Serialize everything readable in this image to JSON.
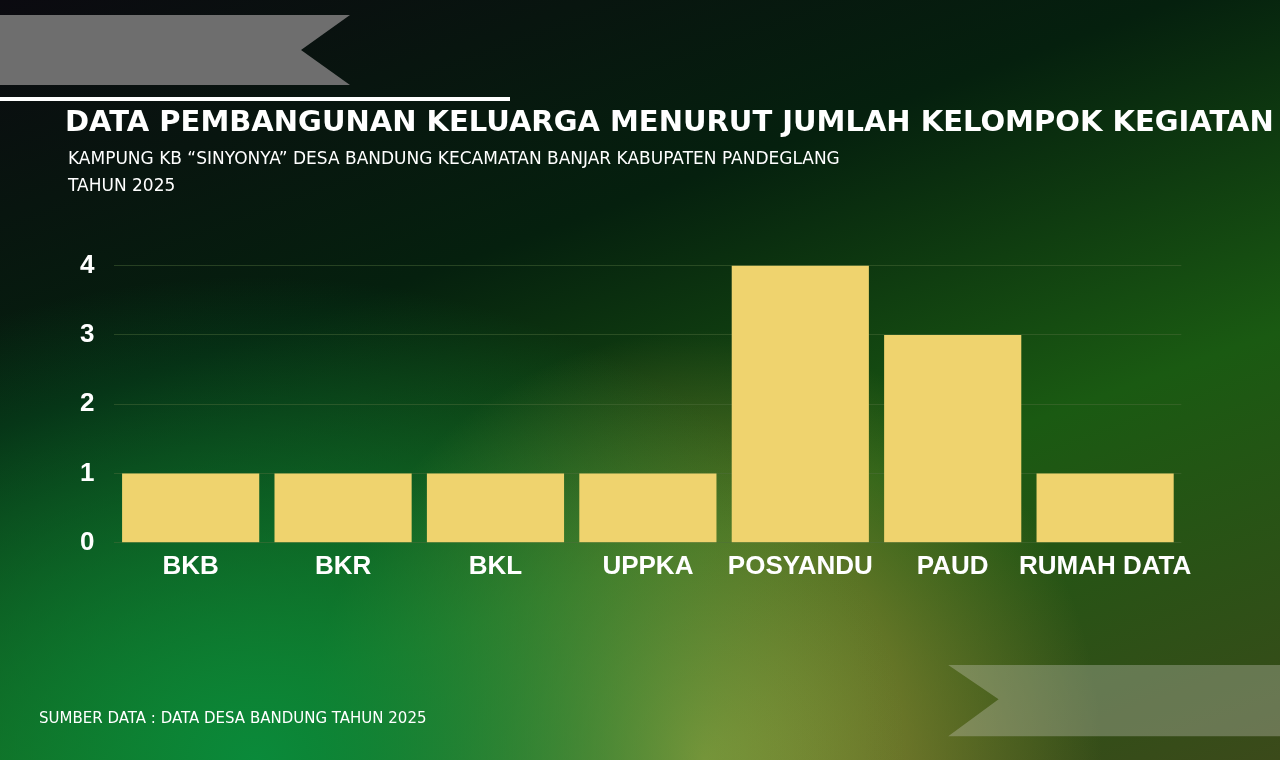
{
  "chart_data": {
    "type": "bar",
    "title": "DATA PEMBANGUNAN KELUARGA MENURUT JUMLAH KELOMPOK KEGIATAN",
    "subtitle": "KAMPUNG KB “SINYONYA” DESA BANDUNG KECAMATAN BANJAR KABUPATEN PANDEGLANG\nTAHUN 2025",
    "categories": [
      "BKB",
      "BKR",
      "BKL",
      "UPPKA",
      "POSYANDU",
      "PAUD",
      "RUMAH DATA"
    ],
    "values": [
      1,
      1,
      1,
      1,
      4,
      3,
      1
    ],
    "color": "#efd36e",
    "ylim": [
      0,
      4
    ],
    "yticks": [
      0,
      1,
      2,
      3,
      4
    ],
    "grid": "y",
    "annotations": [
      "SUMBER DATA : DATA DESA BANDUNG TAHUN 2025"
    ]
  }
}
